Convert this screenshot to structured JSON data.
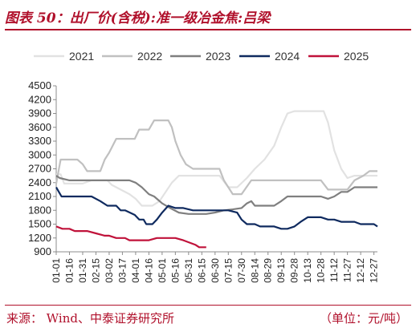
{
  "header": {
    "title": "图表 50：出厂价(含税):准一级冶金焦:吕梁"
  },
  "footer": {
    "source": "来源：  Wind、中泰证券研究所",
    "unit": "（单位：元/吨）"
  },
  "colors": {
    "title": "#b0102b"
  },
  "chart_data": {
    "type": "line",
    "title": "",
    "xlabel": "",
    "ylabel": "",
    "ylim": [
      900,
      4500
    ],
    "yticks": [
      900,
      1200,
      1500,
      1800,
      2100,
      2400,
      2700,
      3000,
      3300,
      3600,
      3900,
      4200,
      4500
    ],
    "x_range": [
      "01-01",
      "12-31"
    ],
    "xticks": [
      "01-01",
      "01-16",
      "01-31",
      "02-15",
      "03-02",
      "03-17",
      "04-01",
      "04-16",
      "05-01",
      "05-16",
      "05-31",
      "06-15",
      "06-30",
      "07-15",
      "07-30",
      "08-14",
      "08-29",
      "09-13",
      "09-28",
      "10-13",
      "10-28",
      "11-12",
      "11-27",
      "12-12",
      "12-27"
    ],
    "grid": false,
    "legend_position": "top",
    "series": [
      {
        "name": "2021",
        "color": "#e2e2e2",
        "points": [
          [
            "01-01",
            2580
          ],
          [
            "01-06",
            2580
          ],
          [
            "01-10",
            2380
          ],
          [
            "01-16",
            2380
          ],
          [
            "01-25",
            2380
          ],
          [
            "01-31",
            2380
          ],
          [
            "02-10",
            2450
          ],
          [
            "02-20",
            2450
          ],
          [
            "02-28",
            2450
          ],
          [
            "03-05",
            2350
          ],
          [
            "03-15",
            2250
          ],
          [
            "03-25",
            2150
          ],
          [
            "04-01",
            2050
          ],
          [
            "04-08",
            1900
          ],
          [
            "04-20",
            1900
          ],
          [
            "04-28",
            2000
          ],
          [
            "05-05",
            2200
          ],
          [
            "05-12",
            2400
          ],
          [
            "05-20",
            2550
          ],
          [
            "05-31",
            2550
          ],
          [
            "06-10",
            2550
          ],
          [
            "06-20",
            2550
          ],
          [
            "07-05",
            2550
          ],
          [
            "07-15",
            2300
          ],
          [
            "07-25",
            2300
          ],
          [
            "08-05",
            2500
          ],
          [
            "08-14",
            2700
          ],
          [
            "08-25",
            2900
          ],
          [
            "09-05",
            3200
          ],
          [
            "09-13",
            3600
          ],
          [
            "09-20",
            3900
          ],
          [
            "09-28",
            3950
          ],
          [
            "10-10",
            3950
          ],
          [
            "10-25",
            3950
          ],
          [
            "10-31",
            3950
          ],
          [
            "11-05",
            3700
          ],
          [
            "11-12",
            3100
          ],
          [
            "11-20",
            2700
          ],
          [
            "11-27",
            2500
          ],
          [
            "12-05",
            2550
          ],
          [
            "12-15",
            2550
          ],
          [
            "12-31",
            2550
          ]
        ]
      },
      {
        "name": "2022",
        "color": "#c0c0c0",
        "points": [
          [
            "01-01",
            2380
          ],
          [
            "01-06",
            2900
          ],
          [
            "01-16",
            2900
          ],
          [
            "01-25",
            2900
          ],
          [
            "01-31",
            2800
          ],
          [
            "02-05",
            2650
          ],
          [
            "02-15",
            2650
          ],
          [
            "02-20",
            2650
          ],
          [
            "02-25",
            2900
          ],
          [
            "03-02",
            3050
          ],
          [
            "03-10",
            3350
          ],
          [
            "03-20",
            3350
          ],
          [
            "03-31",
            3350
          ],
          [
            "04-05",
            3550
          ],
          [
            "04-12",
            3550
          ],
          [
            "04-16",
            3550
          ],
          [
            "04-22",
            3750
          ],
          [
            "05-01",
            3750
          ],
          [
            "05-08",
            3750
          ],
          [
            "05-12",
            3600
          ],
          [
            "05-16",
            3300
          ],
          [
            "05-22",
            3000
          ],
          [
            "05-28",
            2800
          ],
          [
            "06-05",
            2700
          ],
          [
            "06-15",
            2700
          ],
          [
            "06-25",
            2700
          ],
          [
            "07-05",
            2700
          ],
          [
            "07-10",
            2450
          ],
          [
            "07-20",
            2150
          ],
          [
            "07-30",
            2150
          ],
          [
            "08-10",
            2450
          ],
          [
            "08-20",
            2450
          ],
          [
            "08-29",
            2450
          ],
          [
            "09-13",
            2450
          ],
          [
            "09-28",
            2450
          ],
          [
            "10-05",
            2450
          ],
          [
            "10-20",
            2450
          ],
          [
            "10-28",
            2450
          ],
          [
            "11-05",
            2250
          ],
          [
            "11-20",
            2250
          ],
          [
            "11-27",
            2250
          ],
          [
            "12-05",
            2450
          ],
          [
            "12-15",
            2550
          ],
          [
            "12-22",
            2650
          ],
          [
            "12-31",
            2650
          ]
        ]
      },
      {
        "name": "2023",
        "color": "#7f7f7f",
        "points": [
          [
            "01-01",
            2550
          ],
          [
            "01-05",
            2500
          ],
          [
            "01-16",
            2450
          ],
          [
            "01-31",
            2450
          ],
          [
            "02-15",
            2450
          ],
          [
            "03-02",
            2450
          ],
          [
            "03-17",
            2450
          ],
          [
            "03-25",
            2450
          ],
          [
            "04-01",
            2400
          ],
          [
            "04-08",
            2300
          ],
          [
            "04-16",
            2150
          ],
          [
            "04-22",
            2100
          ],
          [
            "05-01",
            1950
          ],
          [
            "05-10",
            1850
          ],
          [
            "05-20",
            1750
          ],
          [
            "05-31",
            1720
          ],
          [
            "06-10",
            1720
          ],
          [
            "06-20",
            1720
          ],
          [
            "06-30",
            1750
          ],
          [
            "07-10",
            1800
          ],
          [
            "07-20",
            1820
          ],
          [
            "07-30",
            1850
          ],
          [
            "08-05",
            1950
          ],
          [
            "08-10",
            2000
          ],
          [
            "08-14",
            1900
          ],
          [
            "08-20",
            1900
          ],
          [
            "08-29",
            1900
          ],
          [
            "09-05",
            1900
          ],
          [
            "09-13",
            2000
          ],
          [
            "09-20",
            2100
          ],
          [
            "10-05",
            2100
          ],
          [
            "10-20",
            2100
          ],
          [
            "10-28",
            2100
          ],
          [
            "11-05",
            2050
          ],
          [
            "11-12",
            2100
          ],
          [
            "11-20",
            2200
          ],
          [
            "11-27",
            2200
          ],
          [
            "12-05",
            2300
          ],
          [
            "12-15",
            2300
          ],
          [
            "12-31",
            2300
          ]
        ]
      },
      {
        "name": "2024",
        "color": "#0f2a5f",
        "points": [
          [
            "01-01",
            2300
          ],
          [
            "01-04",
            2200
          ],
          [
            "01-07",
            2100
          ],
          [
            "01-16",
            2100
          ],
          [
            "01-31",
            2100
          ],
          [
            "02-10",
            2100
          ],
          [
            "02-20",
            2000
          ],
          [
            "02-28",
            1900
          ],
          [
            "03-10",
            1900
          ],
          [
            "03-15",
            1800
          ],
          [
            "03-20",
            1800
          ],
          [
            "03-31",
            1700
          ],
          [
            "04-05",
            1600
          ],
          [
            "04-10",
            1600
          ],
          [
            "04-13",
            1500
          ],
          [
            "04-20",
            1500
          ],
          [
            "04-25",
            1600
          ],
          [
            "05-01",
            1750
          ],
          [
            "05-08",
            1900
          ],
          [
            "05-16",
            1850
          ],
          [
            "05-25",
            1850
          ],
          [
            "06-05",
            1800
          ],
          [
            "06-15",
            1800
          ],
          [
            "06-25",
            1800
          ],
          [
            "07-05",
            1800
          ],
          [
            "07-15",
            1800
          ],
          [
            "07-25",
            1750
          ],
          [
            "07-30",
            1600
          ],
          [
            "08-05",
            1500
          ],
          [
            "08-14",
            1500
          ],
          [
            "08-20",
            1450
          ],
          [
            "08-29",
            1450
          ],
          [
            "09-05",
            1450
          ],
          [
            "09-13",
            1400
          ],
          [
            "09-20",
            1400
          ],
          [
            "09-28",
            1450
          ],
          [
            "10-05",
            1550
          ],
          [
            "10-13",
            1650
          ],
          [
            "10-20",
            1650
          ],
          [
            "10-28",
            1650
          ],
          [
            "11-05",
            1600
          ],
          [
            "11-12",
            1600
          ],
          [
            "11-20",
            1550
          ],
          [
            "11-27",
            1550
          ],
          [
            "12-05",
            1550
          ],
          [
            "12-12",
            1500
          ],
          [
            "12-20",
            1500
          ],
          [
            "12-27",
            1500
          ],
          [
            "12-31",
            1450
          ]
        ]
      },
      {
        "name": "2025",
        "color": "#c0123a",
        "points": [
          [
            "01-01",
            1450
          ],
          [
            "01-08",
            1400
          ],
          [
            "01-16",
            1400
          ],
          [
            "01-22",
            1350
          ],
          [
            "02-05",
            1350
          ],
          [
            "02-15",
            1300
          ],
          [
            "02-25",
            1250
          ],
          [
            "03-02",
            1250
          ],
          [
            "03-10",
            1200
          ],
          [
            "03-20",
            1200
          ],
          [
            "03-25",
            1150
          ],
          [
            "04-05",
            1150
          ],
          [
            "04-16",
            1150
          ],
          [
            "04-25",
            1200
          ],
          [
            "05-05",
            1200
          ],
          [
            "05-16",
            1200
          ],
          [
            "05-25",
            1150
          ],
          [
            "06-01",
            1100
          ],
          [
            "06-08",
            1050
          ],
          [
            "06-12",
            1000
          ],
          [
            "06-20",
            1000
          ]
        ]
      }
    ]
  }
}
